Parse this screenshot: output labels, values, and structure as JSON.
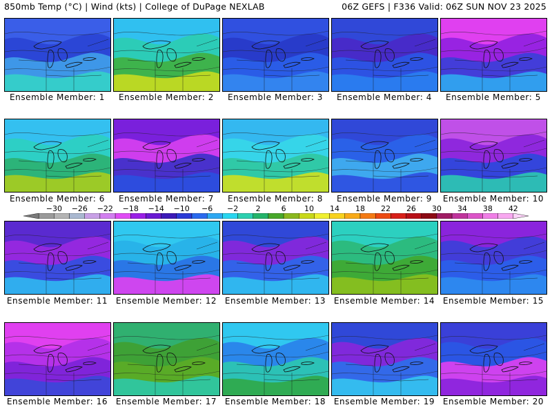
{
  "header": {
    "left": "850mb Temp (°C) | Wind (kts) | College of DuPage NEXLAB",
    "right": "06Z GEFS | F336 Valid: 06Z SUN NOV 23 2025"
  },
  "colorbar": {
    "labels": [
      "-30",
      "-26",
      "-22",
      "-18",
      "-14",
      "-10",
      "-6",
      "-2",
      "2",
      "6",
      "10",
      "14",
      "18",
      "22",
      "26",
      "30",
      "34",
      "38",
      "42"
    ],
    "colors": [
      "#7a7a7a",
      "#9a9a9a",
      "#b4b4b4",
      "#a9b8d0",
      "#c8a0e6",
      "#d27ef0",
      "#e04cf5",
      "#9a20e6",
      "#6a1ad2",
      "#3c1ab8",
      "#2a3ad6",
      "#2a6aee",
      "#2ea8f2",
      "#28d6f0",
      "#2cd0b0",
      "#24b46a",
      "#48a82a",
      "#8ab81e",
      "#c8d81a",
      "#f0f030",
      "#f8d21e",
      "#f8aa18",
      "#f47a14",
      "#ec4a12",
      "#d8201a",
      "#b81018",
      "#8c0a14",
      "#a01c64",
      "#c0349c",
      "#dc54c8",
      "#f07ee6",
      "#f8a8f0",
      "#fcd2f8"
    ]
  },
  "panels": [
    {
      "label": "Ensemble Member: 1",
      "colors": [
        "#3a5ee8",
        "#2a44d4",
        "#40a0ea",
        "#34d2c8"
      ]
    },
    {
      "label": "Ensemble Member: 2",
      "colors": [
        "#30c0f0",
        "#2ccdb0",
        "#40b040",
        "#c8dc20"
      ]
    },
    {
      "label": "Ensemble Member: 3",
      "colors": [
        "#3050e0",
        "#2838c8",
        "#2a60ea",
        "#3488f0"
      ]
    },
    {
      "label": "Ensemble Member: 4",
      "colors": [
        "#3048d8",
        "#4a28c8",
        "#2a56e6",
        "#2a80f0"
      ]
    },
    {
      "label": "Ensemble Member: 5",
      "colors": [
        "#e040f0",
        "#9020e0",
        "#3a40d8",
        "#30a8f0"
      ]
    },
    {
      "label": "Ensemble Member: 6",
      "colors": [
        "#34c0f0",
        "#2cd0c0",
        "#2cb070",
        "#a8cc1e"
      ]
    },
    {
      "label": "Ensemble Member: 7",
      "colors": [
        "#7a20dc",
        "#d840f0",
        "#3a30c8",
        "#2a50e0"
      ]
    },
    {
      "label": "Ensemble Member: 8",
      "colors": [
        "#34b8f0",
        "#36d8e8",
        "#30c8a0",
        "#d0e020"
      ]
    },
    {
      "label": "Ensemble Member: 9",
      "colors": [
        "#3048d8",
        "#2a64ea",
        "#40b0f0",
        "#2e4ce0"
      ]
    },
    {
      "label": "Ensemble Member: 10",
      "colors": [
        "#c050e8",
        "#8a24dc",
        "#2a48dc",
        "#2cc8b0"
      ]
    },
    {
      "label": "Ensemble Member: 11",
      "colors": [
        "#5a2ad0",
        "#9a28e0",
        "#3050e0",
        "#30b8f0"
      ]
    },
    {
      "label": "Ensemble Member: 12",
      "colors": [
        "#30c8f0",
        "#28b0e8",
        "#2a70e6",
        "#e040f0"
      ]
    },
    {
      "label": "Ensemble Member: 13",
      "colors": [
        "#3048d8",
        "#8a26dc",
        "#2a68ea",
        "#30c0f0"
      ]
    },
    {
      "label": "Ensemble Member: 14",
      "colors": [
        "#2cd0c0",
        "#2cb878",
        "#40a830",
        "#8cc01e"
      ]
    },
    {
      "label": "Ensemble Member: 15",
      "colors": [
        "#8a24dc",
        "#3a40d8",
        "#2a60ea",
        "#2e8cf0"
      ]
    },
    {
      "label": "Ensemble Member: 16",
      "colors": [
        "#e040f0",
        "#b030e8",
        "#7a24d8",
        "#3a48d8"
      ]
    },
    {
      "label": "Ensemble Member: 17",
      "colors": [
        "#30b070",
        "#40a030",
        "#5cac26",
        "#2cc8a8"
      ]
    },
    {
      "label": "Ensemble Member: 18",
      "colors": [
        "#30c8f0",
        "#2a80ea",
        "#2cc8b0",
        "#30a848"
      ]
    },
    {
      "label": "Ensemble Member: 19",
      "colors": [
        "#3048d8",
        "#8a26dc",
        "#2a70ea",
        "#34c4f0"
      ]
    },
    {
      "label": "Ensemble Member: 20",
      "colors": [
        "#3a40d8",
        "#2a58e6",
        "#e040f0",
        "#8a24dc"
      ]
    }
  ]
}
